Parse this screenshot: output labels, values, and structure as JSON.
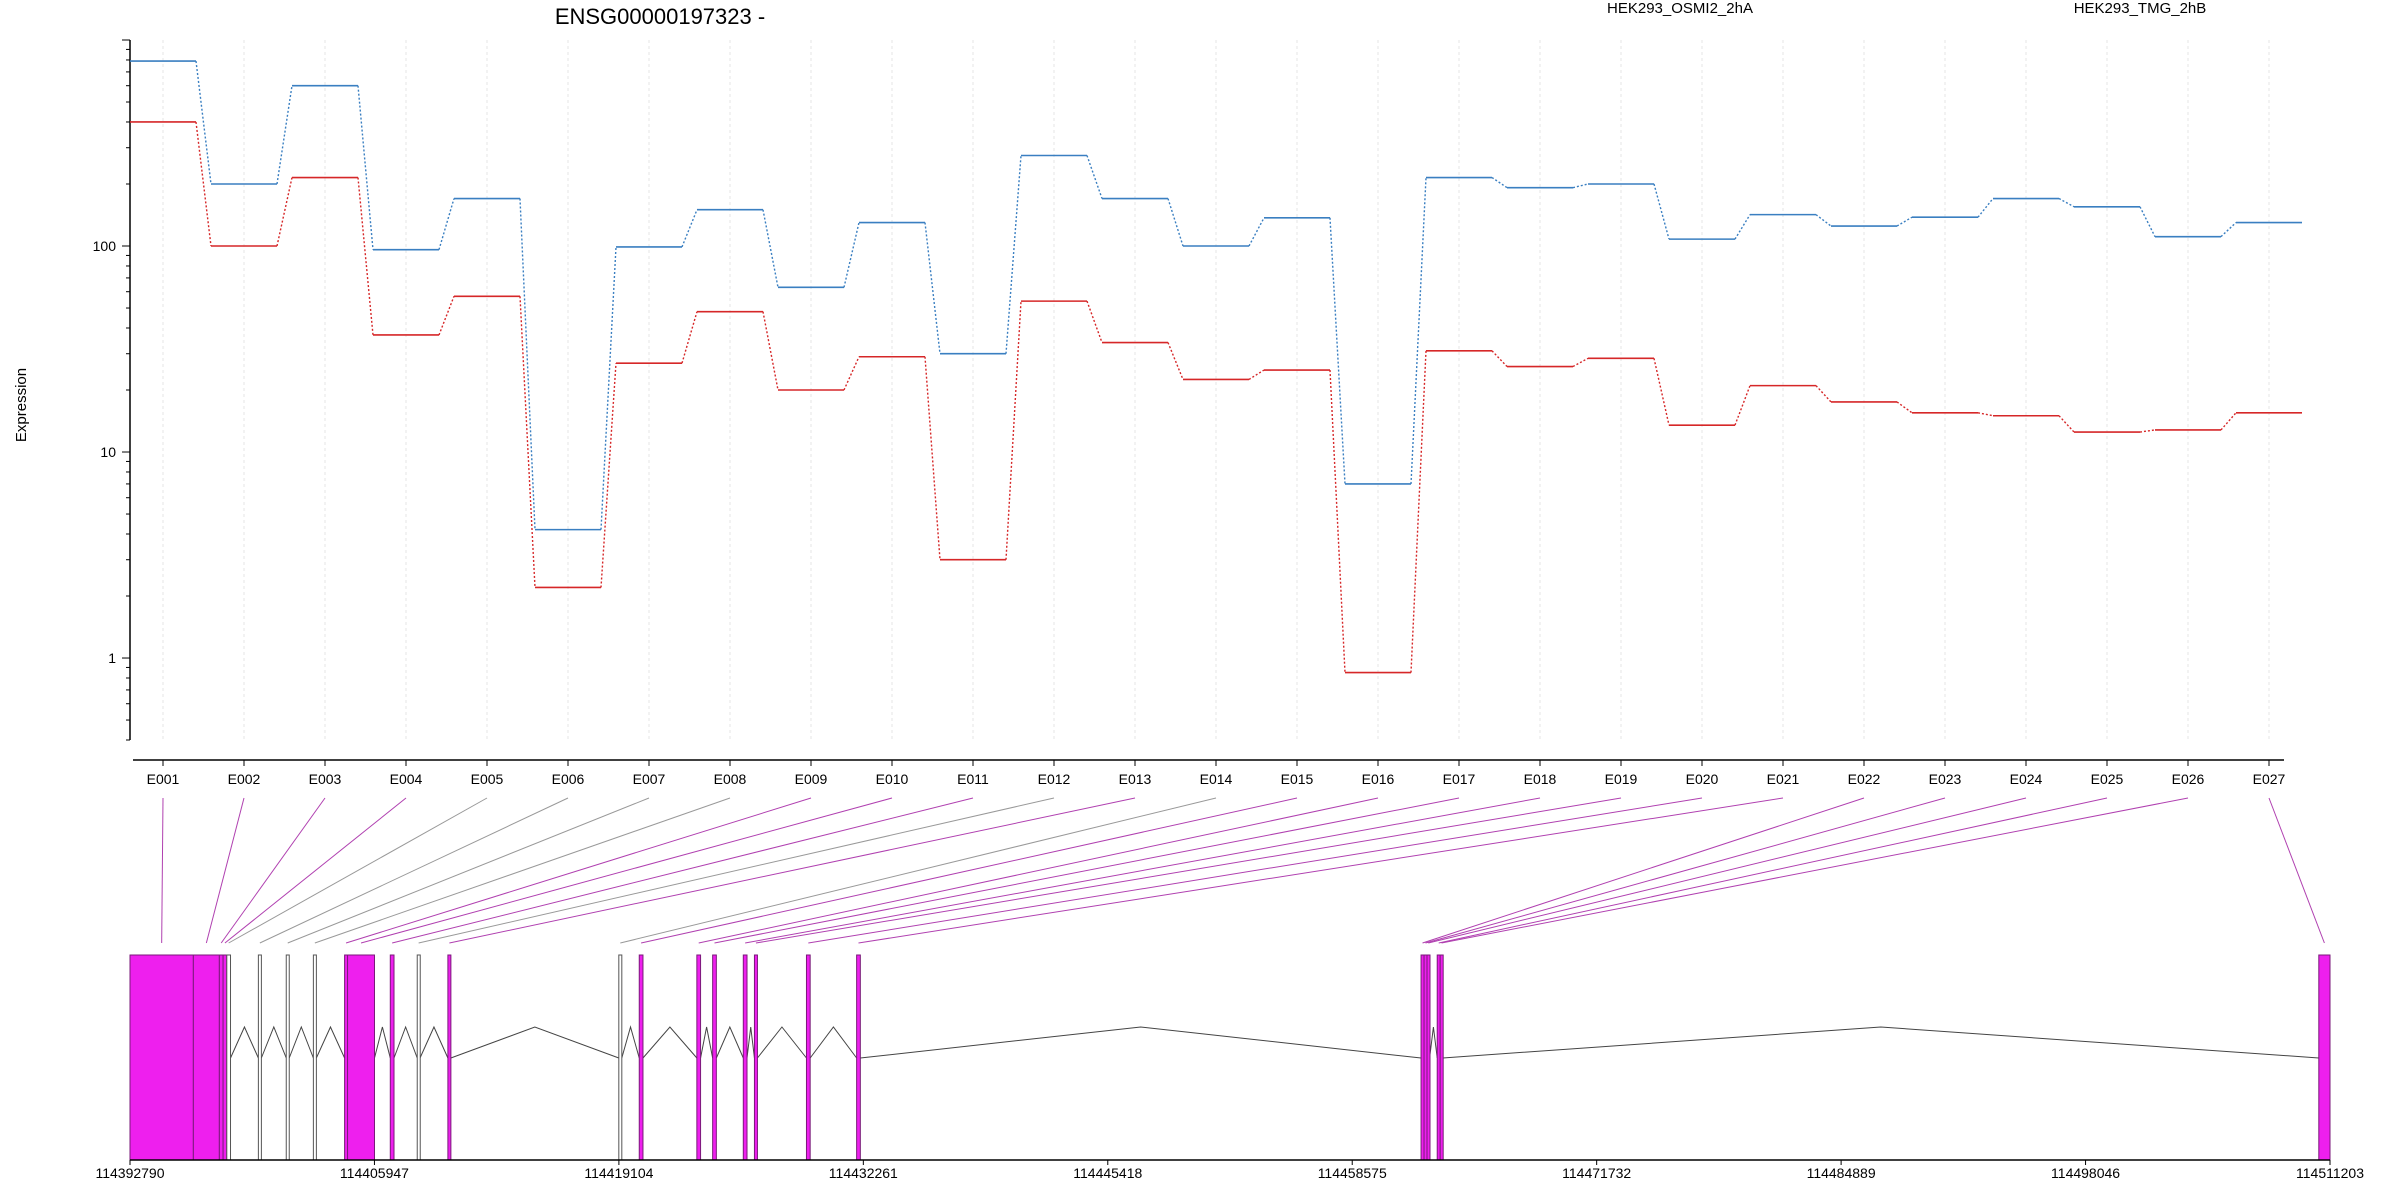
{
  "chart_data": [
    {
      "type": "line",
      "title": "ENSG00000197323 -",
      "ylabel": "Expression",
      "xlabel": "",
      "y_scale": "log",
      "ylim": [
        0.4,
        1000
      ],
      "y_ticks": [
        1,
        10,
        100
      ],
      "y_tick_labels": [
        "1",
        "10",
        "100"
      ],
      "grid": "vertical lines at each exon, light gray",
      "legend_placement": "top, text labels in series colour",
      "categories": [
        "E001",
        "E002",
        "E003",
        "E004",
        "E005",
        "E006",
        "E007",
        "E008",
        "E009",
        "E010",
        "E011",
        "E012",
        "E013",
        "E014",
        "E015",
        "E016",
        "E017",
        "E018",
        "E019",
        "E020",
        "E021",
        "E022",
        "E023",
        "E024",
        "E025",
        "E026",
        "E027"
      ],
      "series": [
        {
          "name": "HEK293_OSMI2_2hA",
          "color": "#d62728",
          "values": [
            400,
            100,
            215,
            37,
            57,
            2.2,
            27,
            48,
            20,
            29,
            3.0,
            54,
            34,
            22.5,
            25,
            0.85,
            31,
            26,
            28.5,
            13.5,
            21,
            17.5,
            15.5,
            15,
            12.5,
            12.8,
            15.5
          ]
        },
        {
          "name": "HEK293_TMG_2hB",
          "color": "#3a7fc1",
          "values": [
            790,
            200,
            600,
            96,
            170,
            4.2,
            99,
            150,
            63,
            130,
            30,
            275,
            170,
            100,
            137,
            7.0,
            215,
            192,
            200,
            108,
            142,
            125,
            138,
            170,
            155,
            111,
            130
          ]
        }
      ]
    },
    {
      "type": "gene-structure",
      "xlabel": "",
      "x_ticks": [
        114392790,
        114405947,
        114419104,
        114432261,
        114445418,
        114458575,
        114471732,
        114484889,
        114498046,
        114511203
      ],
      "x_tick_labels": [
        "114392790",
        "114405947",
        "114419104",
        "114432261",
        "114445418",
        "114458575",
        "114471732",
        "114484889",
        "114498046",
        "114511203"
      ],
      "xlim": [
        114392790,
        114511203
      ],
      "colors": {
        "exon": "#ee1fee",
        "exon_border": "#7a1a7a",
        "intron": "#444444",
        "connector_highlight": "#b040b0",
        "connector_plain": "#999999"
      },
      "exons": [
        {
          "id": "E001",
          "start": 114392790,
          "end": 114396200,
          "highlight": true
        },
        {
          "id": "E002",
          "start": 114396200,
          "end": 114397600,
          "highlight": true
        },
        {
          "id": "E003",
          "start": 114397600,
          "end": 114397800,
          "highlight": true
        },
        {
          "id": "E004",
          "start": 114397800,
          "end": 114398000,
          "highlight": true
        },
        {
          "id": "E005",
          "start": 114398000,
          "end": 114398200,
          "highlight": false
        },
        {
          "id": "E006",
          "start": 114399700,
          "end": 114399860,
          "highlight": false
        },
        {
          "id": "E007",
          "start": 114401200,
          "end": 114401360,
          "highlight": false
        },
        {
          "id": "E008",
          "start": 114402660,
          "end": 114402820,
          "highlight": false
        },
        {
          "id": "E009",
          "start": 114404340,
          "end": 114404500,
          "highlight": true
        },
        {
          "id": "E010",
          "start": 114404500,
          "end": 114405950,
          "highlight": true
        },
        {
          "id": "E011",
          "start": 114406800,
          "end": 114407000,
          "highlight": true
        },
        {
          "id": "E012",
          "start": 114408250,
          "end": 114408400,
          "highlight": false
        },
        {
          "id": "E013",
          "start": 114409900,
          "end": 114410060,
          "highlight": true
        },
        {
          "id": "E014",
          "start": 114419100,
          "end": 114419260,
          "highlight": false
        },
        {
          "id": "E015",
          "start": 114420200,
          "end": 114420400,
          "highlight": true
        },
        {
          "id": "E016",
          "start": 114423300,
          "end": 114423500,
          "highlight": true
        },
        {
          "id": "E017",
          "start": 114424150,
          "end": 114424350,
          "highlight": true
        },
        {
          "id": "E018",
          "start": 114425800,
          "end": 114426000,
          "highlight": true
        },
        {
          "id": "E019",
          "start": 114426400,
          "end": 114426560,
          "highlight": true
        },
        {
          "id": "E020",
          "start": 114429200,
          "end": 114429400,
          "highlight": true
        },
        {
          "id": "E021",
          "start": 114431900,
          "end": 114432100,
          "highlight": true
        },
        {
          "id": "E022",
          "start": 114462280,
          "end": 114462440,
          "highlight": true
        },
        {
          "id": "E023",
          "start": 114462440,
          "end": 114462600,
          "highlight": true
        },
        {
          "id": "E024",
          "start": 114462600,
          "end": 114462740,
          "highlight": true
        },
        {
          "id": "E025",
          "start": 114463150,
          "end": 114463310,
          "highlight": true
        },
        {
          "id": "E026",
          "start": 114463310,
          "end": 114463450,
          "highlight": true
        },
        {
          "id": "E027",
          "start": 114510600,
          "end": 114511203,
          "highlight": true
        }
      ]
    }
  ]
}
